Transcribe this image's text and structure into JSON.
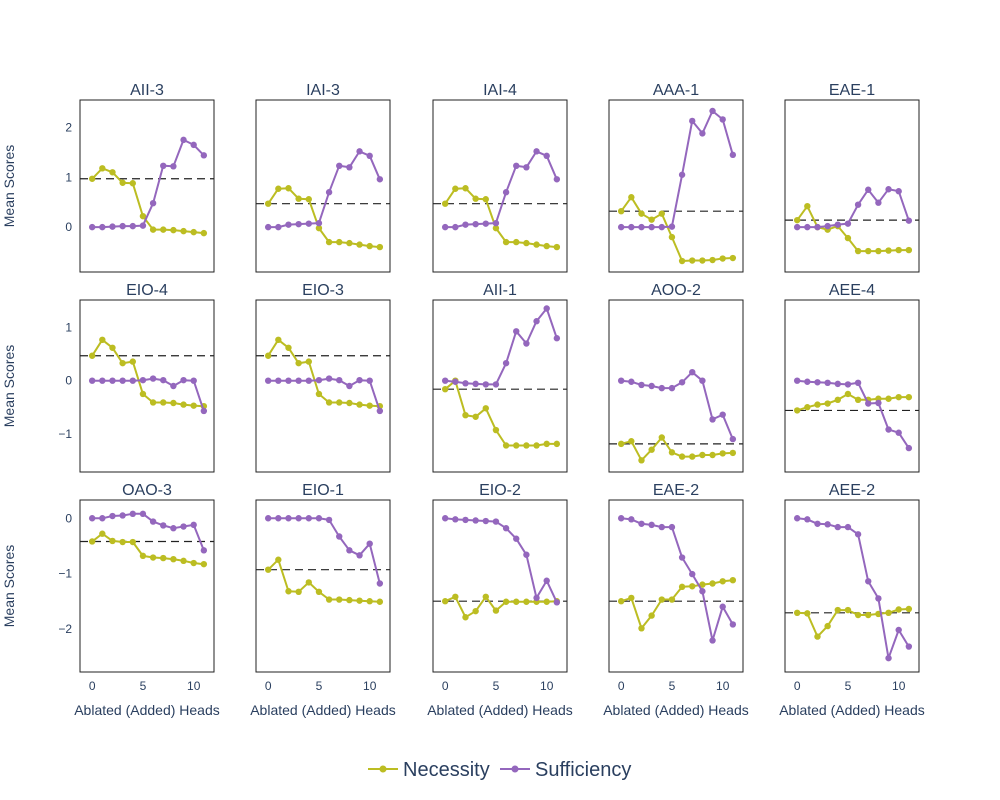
{
  "chart_data": {
    "type": "line",
    "x": [
      0,
      1,
      2,
      3,
      4,
      5,
      6,
      7,
      8,
      9,
      10,
      11
    ],
    "xlabel": "Ablated (Added) Heads",
    "ylabel": "Mean Scores",
    "x_ticks": [
      0,
      5,
      10
    ],
    "xlim": [
      -1.2,
      12
    ],
    "legend": {
      "position": "bottom-center",
      "entries": [
        {
          "name": "Necessity",
          "color": "#bcbd22"
        },
        {
          "name": "Sufficiency",
          "color": "#9467bd"
        }
      ]
    },
    "grid": false,
    "rows": [
      {
        "ylabel": "Mean Scores",
        "ylim": [
          -0.9,
          2.55
        ],
        "yticks": [
          0,
          1,
          2
        ],
        "ytick_labels": [
          "0",
          "1",
          "2"
        ],
        "panels": [
          {
            "title": "AII-3",
            "baseline": 0.97,
            "necessity": [
              0.97,
              1.18,
              1.1,
              0.89,
              0.88,
              0.22,
              -0.05,
              -0.05,
              -0.06,
              -0.08,
              -0.1,
              -0.12
            ],
            "sufficiency": [
              0.0,
              0.0,
              0.01,
              0.02,
              0.02,
              0.03,
              0.48,
              1.23,
              1.22,
              1.75,
              1.65,
              1.44
            ]
          },
          {
            "title": "IAI-3",
            "baseline": 0.47,
            "necessity": [
              0.47,
              0.77,
              0.78,
              0.57,
              0.56,
              -0.02,
              -0.3,
              -0.3,
              -0.32,
              -0.35,
              -0.38,
              -0.4
            ],
            "sufficiency": [
              0.0,
              0.0,
              0.05,
              0.06,
              0.07,
              0.08,
              0.7,
              1.23,
              1.2,
              1.52,
              1.43,
              0.96
            ]
          },
          {
            "title": "IAI-4",
            "baseline": 0.47,
            "necessity": [
              0.47,
              0.77,
              0.78,
              0.57,
              0.56,
              -0.02,
              -0.3,
              -0.3,
              -0.32,
              -0.35,
              -0.38,
              -0.4
            ],
            "sufficiency": [
              0.0,
              0.0,
              0.05,
              0.06,
              0.07,
              0.08,
              0.7,
              1.23,
              1.2,
              1.52,
              1.43,
              0.96
            ]
          },
          {
            "title": "AAA-1",
            "baseline": 0.32,
            "necessity": [
              0.32,
              0.6,
              0.27,
              0.15,
              0.27,
              -0.2,
              -0.68,
              -0.67,
              -0.67,
              -0.66,
              -0.63,
              -0.62
            ],
            "sufficiency": [
              0.0,
              0.0,
              0.0,
              0.0,
              0.0,
              0.01,
              1.05,
              2.13,
              1.88,
              2.33,
              2.16,
              1.45
            ]
          },
          {
            "title": "EAE-1",
            "baseline": 0.14,
            "necessity": [
              0.14,
              0.42,
              0.0,
              -0.05,
              0.02,
              -0.22,
              -0.48,
              -0.48,
              -0.48,
              -0.47,
              -0.46,
              -0.46
            ],
            "sufficiency": [
              0.0,
              0.0,
              0.0,
              0.02,
              0.05,
              0.07,
              0.45,
              0.75,
              0.49,
              0.76,
              0.72,
              0.13
            ]
          }
        ]
      },
      {
        "ylabel": "Mean Scores",
        "ylim": [
          -1.72,
          1.52
        ],
        "yticks": [
          -1,
          0,
          1
        ],
        "ytick_labels": [
          "−1",
          "0",
          "1"
        ],
        "panels": [
          {
            "title": "EIO-4",
            "baseline": 0.47,
            "necessity": [
              0.47,
              0.77,
              0.62,
              0.33,
              0.36,
              -0.25,
              -0.41,
              -0.41,
              -0.42,
              -0.45,
              -0.47,
              -0.48
            ],
            "sufficiency": [
              0.0,
              0.0,
              0.0,
              0.0,
              0.0,
              0.01,
              0.04,
              0.01,
              -0.1,
              0.01,
              0.0,
              -0.57
            ]
          },
          {
            "title": "EIO-3",
            "baseline": 0.47,
            "necessity": [
              0.47,
              0.77,
              0.62,
              0.33,
              0.36,
              -0.25,
              -0.41,
              -0.41,
              -0.42,
              -0.45,
              -0.47,
              -0.48
            ],
            "sufficiency": [
              0.0,
              0.0,
              0.0,
              0.0,
              0.0,
              0.01,
              0.04,
              0.01,
              -0.1,
              0.01,
              0.0,
              -0.57
            ]
          },
          {
            "title": "AII-1",
            "baseline": -0.16,
            "necessity": [
              -0.16,
              0.0,
              -0.65,
              -0.68,
              -0.52,
              -0.93,
              -1.22,
              -1.22,
              -1.22,
              -1.22,
              -1.19,
              -1.19
            ],
            "sufficiency": [
              0.0,
              -0.02,
              -0.05,
              -0.06,
              -0.07,
              -0.07,
              0.33,
              0.93,
              0.7,
              1.12,
              1.36,
              0.8
            ]
          },
          {
            "title": "AOO-2",
            "baseline": -1.19,
            "necessity": [
              -1.19,
              -1.14,
              -1.5,
              -1.3,
              -1.07,
              -1.35,
              -1.43,
              -1.43,
              -1.4,
              -1.4,
              -1.37,
              -1.36
            ],
            "sufficiency": [
              0.0,
              -0.02,
              -0.08,
              -0.1,
              -0.14,
              -0.14,
              -0.03,
              0.16,
              0.0,
              -0.73,
              -0.64,
              -1.1
            ]
          },
          {
            "title": "AEE-4",
            "baseline": -0.56,
            "necessity": [
              -0.56,
              -0.5,
              -0.45,
              -0.43,
              -0.36,
              -0.25,
              -0.36,
              -0.36,
              -0.34,
              -0.34,
              -0.31,
              -0.31
            ],
            "sufficiency": [
              0.0,
              -0.02,
              -0.03,
              -0.04,
              -0.06,
              -0.07,
              -0.04,
              -0.43,
              -0.42,
              -0.92,
              -0.98,
              -1.27
            ]
          }
        ]
      },
      {
        "ylabel": "Mean Scores",
        "ylim": [
          -2.78,
          0.33
        ],
        "yticks": [
          -2,
          -1,
          0
        ],
        "ytick_labels": [
          "−2",
          "−1",
          "0"
        ],
        "panels": [
          {
            "title": "OAO-3",
            "baseline": -0.42,
            "necessity": [
              -0.42,
              -0.28,
              -0.41,
              -0.43,
              -0.43,
              -0.68,
              -0.71,
              -0.72,
              -0.74,
              -0.77,
              -0.81,
              -0.83
            ],
            "sufficiency": [
              0.0,
              0.0,
              0.04,
              0.05,
              0.08,
              0.08,
              -0.06,
              -0.13,
              -0.18,
              -0.15,
              -0.12,
              -0.58
            ]
          },
          {
            "title": "EIO-1",
            "baseline": -0.93,
            "necessity": [
              -0.93,
              -0.75,
              -1.32,
              -1.33,
              -1.16,
              -1.33,
              -1.47,
              -1.47,
              -1.48,
              -1.49,
              -1.5,
              -1.51
            ],
            "sufficiency": [
              0.0,
              0.0,
              0.0,
              0.0,
              0.0,
              0.0,
              -0.03,
              -0.33,
              -0.58,
              -0.67,
              -0.46,
              -1.18
            ]
          },
          {
            "title": "EIO-2",
            "baseline": -1.5,
            "necessity": [
              -1.5,
              -1.42,
              -1.79,
              -1.68,
              -1.42,
              -1.67,
              -1.51,
              -1.51,
              -1.51,
              -1.51,
              -1.51,
              -1.5
            ],
            "sufficiency": [
              0.0,
              -0.02,
              -0.03,
              -0.04,
              -0.05,
              -0.06,
              -0.18,
              -0.37,
              -0.66,
              -1.44,
              -1.13,
              -1.52
            ]
          },
          {
            "title": "EAE-2",
            "baseline": -1.5,
            "necessity": [
              -1.5,
              -1.44,
              -1.99,
              -1.76,
              -1.47,
              -1.47,
              -1.24,
              -1.23,
              -1.2,
              -1.18,
              -1.14,
              -1.12
            ],
            "sufficiency": [
              0.0,
              -0.02,
              -0.1,
              -0.12,
              -0.16,
              -0.16,
              -0.71,
              -1.01,
              -1.32,
              -2.21,
              -1.6,
              -1.92
            ]
          },
          {
            "title": "AEE-2",
            "baseline": -1.71,
            "necessity": [
              -1.71,
              -1.72,
              -2.14,
              -1.95,
              -1.66,
              -1.66,
              -1.75,
              -1.75,
              -1.73,
              -1.71,
              -1.65,
              -1.64
            ],
            "sufficiency": [
              0.0,
              -0.02,
              -0.1,
              -0.11,
              -0.16,
              -0.16,
              -0.29,
              -1.14,
              -1.45,
              -2.53,
              -2.02,
              -2.32
            ]
          }
        ]
      }
    ]
  }
}
